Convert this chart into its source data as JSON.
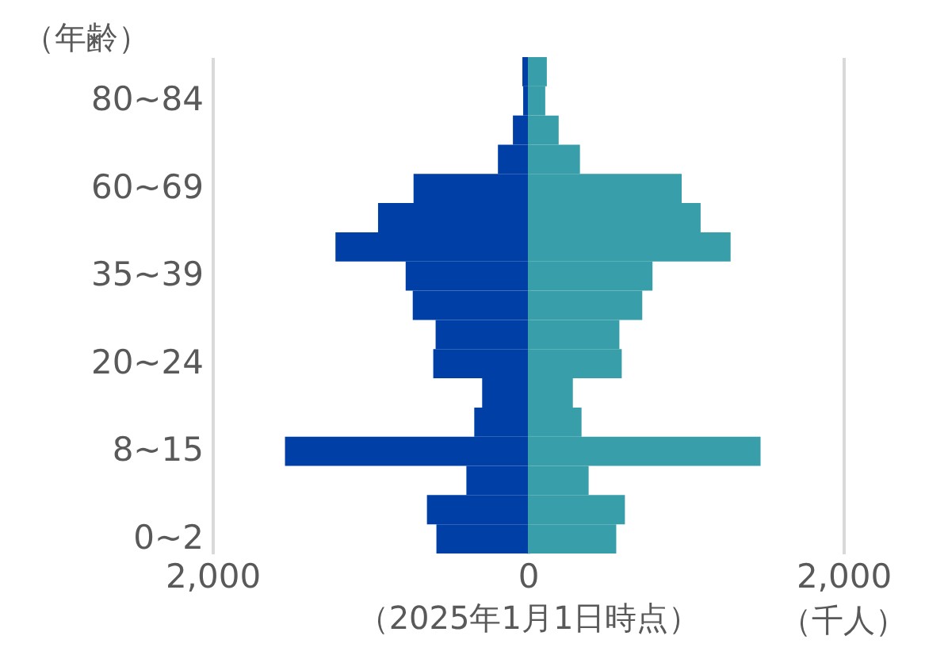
{
  "chart_data": {
    "type": "bar",
    "orientation": "horizontal",
    "stacked": true,
    "ylabel": "（年齢）",
    "xlabel": "（2025年1月1日時点）",
    "annotations": [
      "（千人）"
    ],
    "categories": [
      null,
      "80~84",
      null,
      null,
      "60~69",
      null,
      null,
      "35~39",
      null,
      null,
      "20~24",
      null,
      null,
      "8~15",
      null,
      null,
      "0~2"
    ],
    "series": [
      {
        "color": "#003fa5",
        "values": [
          -35,
          -30,
          -95,
          -190,
          -725,
          -950,
          -1220,
          -775,
          -730,
          -585,
          -600,
          -290,
          -340,
          -1540,
          -390,
          -640,
          -580
        ]
      },
      {
        "color": "#389ea9",
        "values": [
          120,
          110,
          195,
          330,
          975,
          1095,
          1285,
          790,
          725,
          580,
          595,
          285,
          340,
          1475,
          385,
          615,
          560
        ]
      }
    ],
    "xlim": [
      -2000,
      2000
    ],
    "xticks": [
      {
        "value": -2000,
        "label": "2,000"
      },
      0,
      {
        "value": 2000,
        "label": "2,000"
      }
    ],
    "grid": "x",
    "legend": false
  }
}
